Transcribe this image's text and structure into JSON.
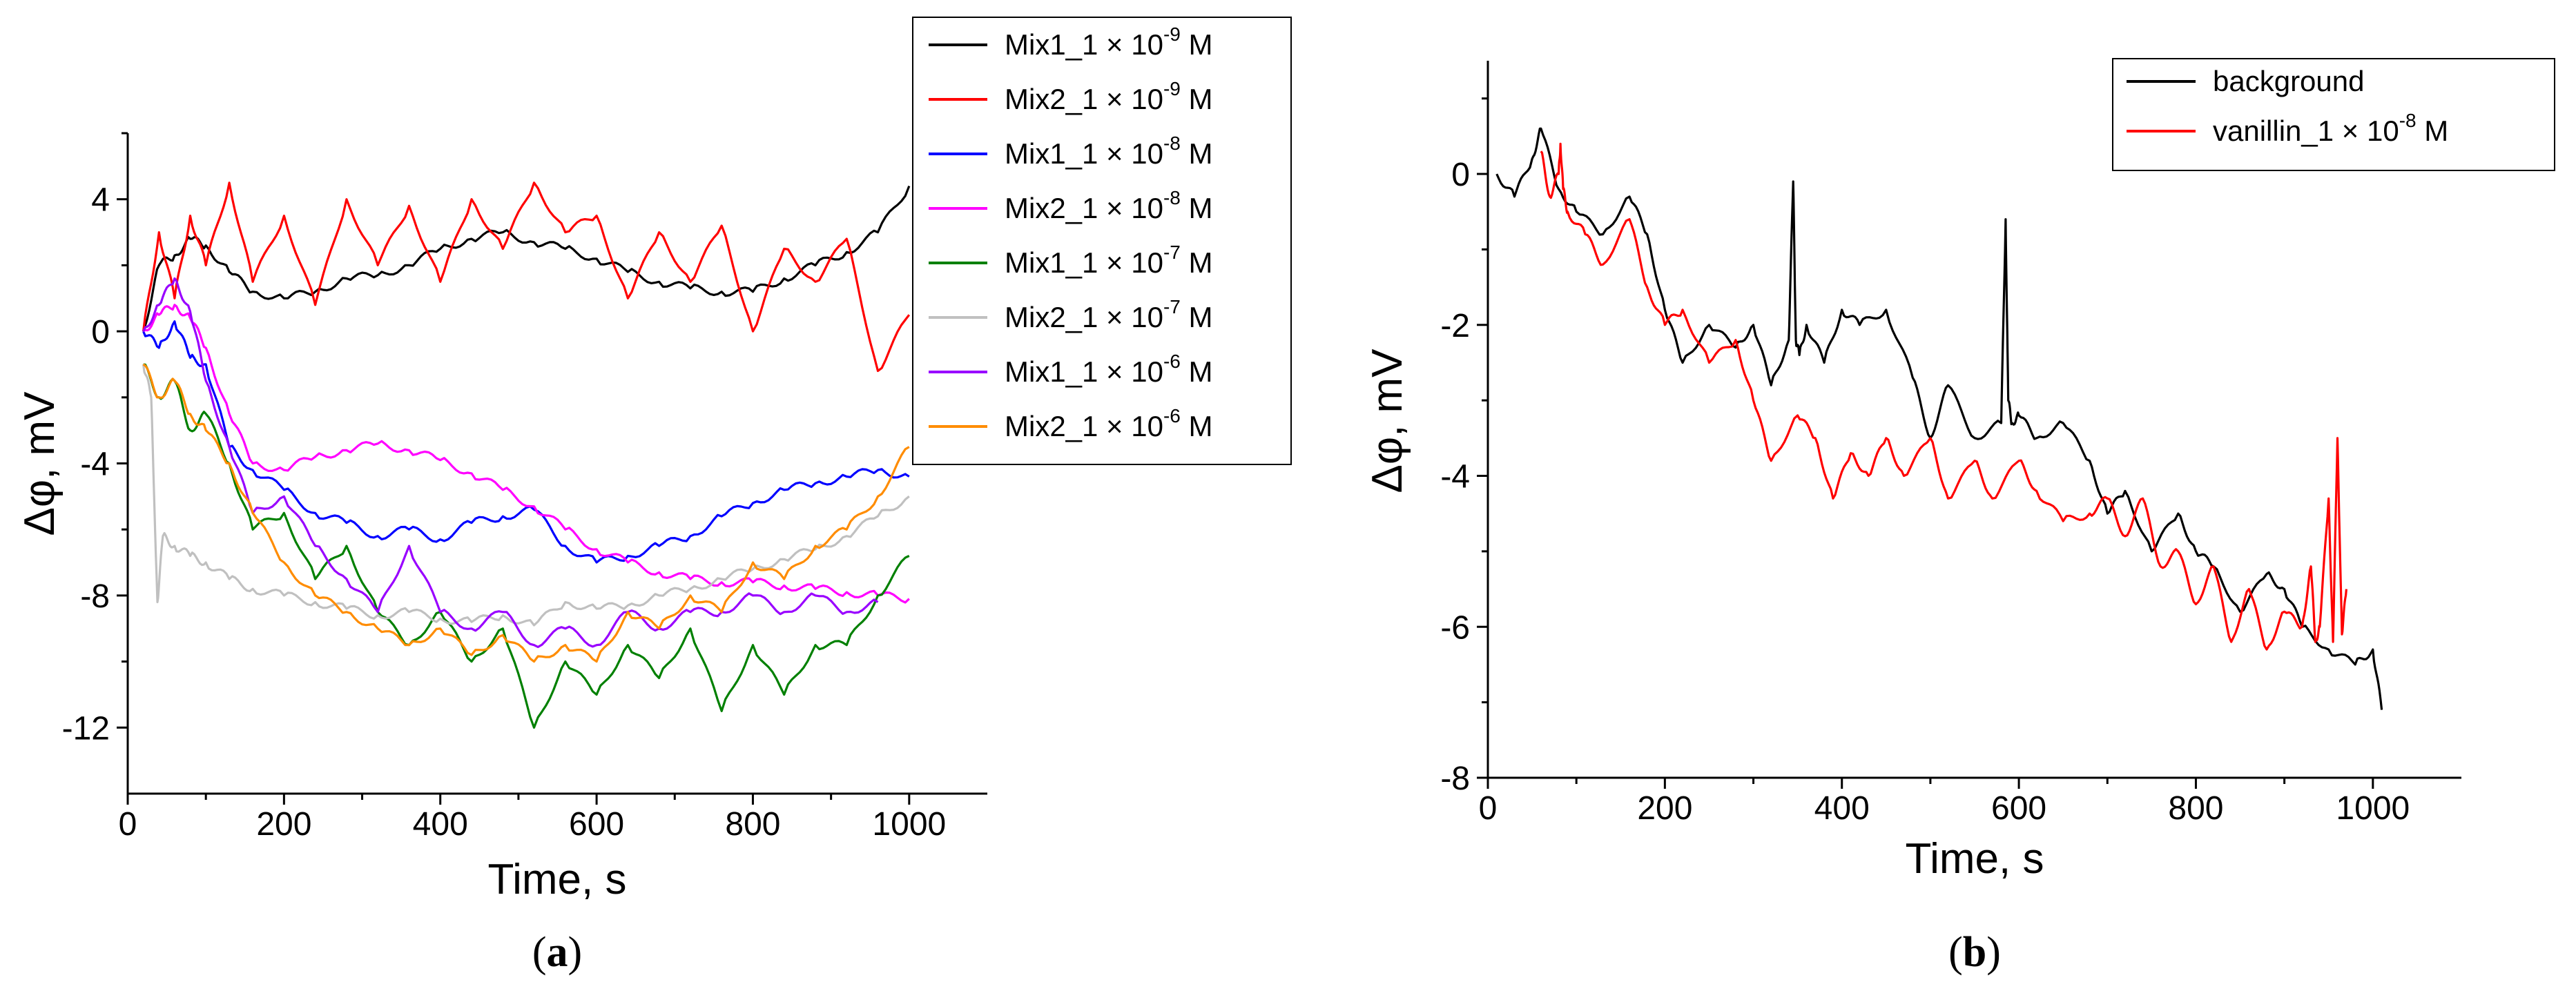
{
  "chart_data": [
    {
      "id": "a",
      "type": "line",
      "caption": "a",
      "xlabel": "Time, s",
      "ylabel": "Δφ, mV",
      "xlim": [
        0,
        1100
      ],
      "ylim": [
        -14,
        6
      ],
      "xticks": [
        0,
        200,
        400,
        600,
        800,
        1000
      ],
      "yticks": [
        -12,
        -8,
        -4,
        0,
        4
      ],
      "legend_position": "top-right",
      "series": [
        {
          "name": "Mix1_1 × 10-9 M",
          "label_main": "Mix1_1 × 10",
          "label_exp": "-9",
          "label_unit": " M",
          "color": "#000000",
          "x": [
            20,
            40,
            60,
            80,
            100,
            130,
            160,
            200,
            240,
            280,
            320,
            360,
            400,
            440,
            480,
            520,
            560,
            600,
            640,
            680,
            720,
            760,
            800,
            840,
            880,
            920,
            960,
            1000
          ],
          "y": [
            0,
            2,
            2.3,
            2.8,
            2.6,
            1.8,
            1.2,
            1.0,
            1.2,
            1.6,
            1.7,
            2.0,
            2.5,
            2.8,
            3.0,
            2.7,
            2.5,
            2.2,
            1.8,
            1.5,
            1.3,
            1.2,
            1.2,
            1.6,
            2.0,
            2.4,
            3.0,
            4.4
          ]
        },
        {
          "name": "Mix2_1 × 10-9 M",
          "label_main": "Mix2_1 × 10",
          "label_exp": "-9",
          "label_unit": " M",
          "color": "#ff0000",
          "x": [
            20,
            40,
            60,
            80,
            100,
            130,
            160,
            200,
            240,
            280,
            320,
            360,
            400,
            440,
            480,
            520,
            560,
            600,
            640,
            680,
            720,
            760,
            800,
            840,
            880,
            920,
            960,
            1000
          ],
          "y": [
            0,
            3,
            1,
            3.5,
            2,
            4.5,
            1.5,
            3.5,
            0.8,
            4,
            2,
            3.8,
            1.5,
            4,
            2.5,
            4.5,
            3,
            3.5,
            1,
            3,
            1.5,
            3.2,
            0,
            2.5,
            1.5,
            2.8,
            -1.2,
            0.5
          ]
        },
        {
          "name": "Mix1_1 × 10-8 M",
          "label_main": "Mix1_1 × 10",
          "label_exp": "-8",
          "label_unit": " M",
          "color": "#0000ff",
          "x": [
            20,
            40,
            60,
            80,
            100,
            130,
            160,
            200,
            240,
            280,
            320,
            360,
            400,
            440,
            480,
            520,
            560,
            600,
            640,
            680,
            720,
            760,
            800,
            840,
            880,
            920,
            960,
            1000
          ],
          "y": [
            0,
            -0.5,
            0.3,
            -0.8,
            -1,
            -3.5,
            -4.2,
            -4.8,
            -5.5,
            -5.8,
            -6.2,
            -6.0,
            -6.3,
            -5.8,
            -5.6,
            -5.4,
            -6.5,
            -7.0,
            -6.8,
            -6.5,
            -6.2,
            -5.6,
            -5.2,
            -4.8,
            -4.6,
            -4.4,
            -4.2,
            -4.4
          ]
        },
        {
          "name": "Mix2_1 × 10-8 M",
          "label_main": "Mix2_1 × 10",
          "label_exp": "-8",
          "label_unit": " M",
          "color": "#ff00ff",
          "x": [
            20,
            40,
            60,
            80,
            100,
            130,
            160,
            200,
            240,
            280,
            320,
            360,
            400,
            440,
            480,
            520,
            560,
            600,
            640,
            680,
            720,
            760,
            800,
            840,
            880,
            920,
            960,
            1000
          ],
          "y": [
            0,
            0.5,
            0.8,
            0.4,
            -0.5,
            -2.5,
            -4.0,
            -4.2,
            -3.8,
            -3.6,
            -3.4,
            -3.6,
            -3.9,
            -4.3,
            -4.8,
            -5.3,
            -6.0,
            -6.6,
            -7.0,
            -7.3,
            -7.5,
            -7.6,
            -7.6,
            -7.7,
            -7.8,
            -7.9,
            -8.0,
            -8.1
          ]
        },
        {
          "name": "Mix1_1 × 10-7 M",
          "label_main": "Mix1_1 × 10",
          "label_exp": "-7",
          "label_unit": " M",
          "color": "#008000",
          "x": [
            20,
            40,
            60,
            80,
            100,
            130,
            160,
            200,
            240,
            280,
            320,
            360,
            400,
            440,
            480,
            520,
            560,
            600,
            640,
            680,
            720,
            760,
            800,
            840,
            880,
            920,
            960,
            1000
          ],
          "y": [
            -1,
            -2,
            -1.5,
            -3,
            -2.5,
            -4,
            -6,
            -5.5,
            -7.5,
            -6.5,
            -8.5,
            -9.5,
            -8.5,
            -10,
            -9,
            -12,
            -10,
            -11,
            -9.5,
            -10.5,
            -9,
            -11.5,
            -9.5,
            -11,
            -9.5,
            -9.5,
            -8,
            -6.8
          ]
        },
        {
          "name": "Mix2_1 × 10-7 M",
          "label_main": "Mix2_1 × 10",
          "label_exp": "-7",
          "label_unit": " M",
          "color": "#c0c0c0",
          "x": [
            20,
            30,
            38,
            45,
            60,
            80,
            100,
            130,
            160,
            200,
            240,
            280,
            320,
            360,
            400,
            440,
            480,
            520,
            560,
            600,
            640,
            680,
            720,
            760,
            800,
            840,
            880,
            920,
            960,
            1000
          ],
          "y": [
            -1,
            -2,
            -8.2,
            -6.2,
            -6.5,
            -6.8,
            -7,
            -7.5,
            -7.8,
            -8.0,
            -8.2,
            -8.4,
            -8.6,
            -8.5,
            -8.7,
            -8.8,
            -8.6,
            -8.9,
            -8.2,
            -8.4,
            -8.3,
            -8.0,
            -7.8,
            -7.5,
            -7.2,
            -6.9,
            -6.6,
            -6.2,
            -5.6,
            -5.0
          ]
        },
        {
          "name": "Mix1_1 × 10-6 M",
          "label_main": "Mix1_1 × 10",
          "label_exp": "-6",
          "label_unit": " M",
          "color": "#9900ff",
          "x": [
            20,
            40,
            60,
            80,
            100,
            130,
            160,
            200,
            240,
            280,
            320,
            360,
            400,
            440,
            480,
            520,
            560,
            600,
            640,
            680,
            720,
            760,
            800,
            840,
            880,
            920,
            960
          ],
          "y": [
            0,
            0.8,
            1.6,
            0.6,
            -1.5,
            -3.5,
            -5.5,
            -5.0,
            -6.5,
            -7.5,
            -8.5,
            -6.5,
            -8.5,
            -9.0,
            -8.5,
            -9.5,
            -9.0,
            -9.5,
            -8.5,
            -9.0,
            -8.5,
            -8.5,
            -8.0,
            -8.5,
            -8.0,
            -8.5,
            -8.2
          ]
        },
        {
          "name": "Mix2_1 × 10-6 M",
          "label_main": "Mix2_1 × 10",
          "label_exp": "-6",
          "label_unit": " M",
          "color": "#ff8c00",
          "x": [
            20,
            40,
            60,
            80,
            100,
            130,
            160,
            200,
            240,
            280,
            320,
            360,
            400,
            440,
            480,
            520,
            560,
            600,
            640,
            680,
            720,
            760,
            800,
            840,
            880,
            920,
            960,
            1000
          ],
          "y": [
            -1,
            -2,
            -1.5,
            -2.5,
            -3,
            -4,
            -5.5,
            -7,
            -8,
            -8.5,
            -9,
            -9.5,
            -9,
            -9.8,
            -9.2,
            -10,
            -9.5,
            -10,
            -8.5,
            -9,
            -8,
            -8.5,
            -7,
            -7.5,
            -6.5,
            -6,
            -5,
            -3.5
          ]
        }
      ]
    },
    {
      "id": "b",
      "type": "line",
      "caption": "b",
      "xlabel": "Time, s",
      "ylabel": "Δφ, mV",
      "xlim": [
        0,
        1100
      ],
      "ylim": [
        -8,
        1.5
      ],
      "xticks": [
        0,
        200,
        400,
        600,
        800,
        1000
      ],
      "yticks": [
        -8,
        -6,
        -4,
        -2,
        0
      ],
      "legend_position": "top-right",
      "series": [
        {
          "name": "background",
          "label_main": "background",
          "label_exp": "",
          "label_unit": "",
          "color": "#000000",
          "x": [
            10,
            30,
            50,
            60,
            80,
            100,
            130,
            160,
            180,
            200,
            220,
            250,
            280,
            300,
            320,
            340,
            345,
            348,
            352,
            360,
            380,
            400,
            420,
            450,
            480,
            500,
            520,
            550,
            580,
            585,
            588,
            592,
            600,
            620,
            650,
            680,
            700,
            720,
            750,
            780,
            800,
            820,
            850,
            880,
            900,
            920,
            950,
            980,
            1000,
            1010
          ],
          "y": [
            0,
            -0.3,
            0.2,
            0.6,
            -0.2,
            -0.5,
            -0.8,
            -0.3,
            -0.8,
            -1.8,
            -2.5,
            -2.0,
            -2.3,
            -2.0,
            -2.8,
            -2.2,
            -0.1,
            -2.2,
            -2.4,
            -2.0,
            -2.5,
            -1.8,
            -2.0,
            -1.8,
            -2.7,
            -3.5,
            -2.8,
            -3.5,
            -3.3,
            -0.6,
            -3.0,
            -3.3,
            -3.2,
            -3.5,
            -3.3,
            -3.8,
            -4.5,
            -4.2,
            -5.0,
            -4.5,
            -5.0,
            -5.2,
            -5.8,
            -5.3,
            -5.5,
            -6.0,
            -6.3,
            -6.5,
            -6.3,
            -7.1
          ]
        },
        {
          "name": "vanillin_1 × 10-8 M",
          "label_main": "vanillin_1 × 10",
          "label_exp": "-8",
          "label_unit": " M",
          "color": "#ff0000",
          "x": [
            60,
            70,
            80,
            82,
            85,
            90,
            110,
            130,
            160,
            180,
            200,
            220,
            250,
            280,
            300,
            320,
            350,
            370,
            390,
            410,
            430,
            450,
            470,
            500,
            520,
            550,
            570,
            600,
            620,
            650,
            680,
            700,
            720,
            740,
            760,
            780,
            800,
            820,
            840,
            860,
            880,
            900,
            920,
            930,
            935,
            940,
            950,
            955,
            960,
            965,
            970
          ],
          "y": [
            0.3,
            -0.3,
            0,
            0.4,
            -0.2,
            -0.5,
            -0.8,
            -1.2,
            -0.6,
            -1.5,
            -2.0,
            -1.8,
            -2.5,
            -2.2,
            -3.0,
            -3.8,
            -3.2,
            -3.5,
            -4.3,
            -3.7,
            -4.0,
            -3.5,
            -4.0,
            -3.5,
            -4.3,
            -3.8,
            -4.3,
            -3.8,
            -4.2,
            -4.6,
            -4.5,
            -4.3,
            -4.8,
            -4.3,
            -5.2,
            -5.0,
            -5.7,
            -5.2,
            -6.2,
            -5.5,
            -6.3,
            -5.8,
            -6.0,
            -5.2,
            -6.2,
            -6.0,
            -4.3,
            -6.2,
            -3.5,
            -6.1,
            -5.5
          ]
        }
      ]
    }
  ]
}
